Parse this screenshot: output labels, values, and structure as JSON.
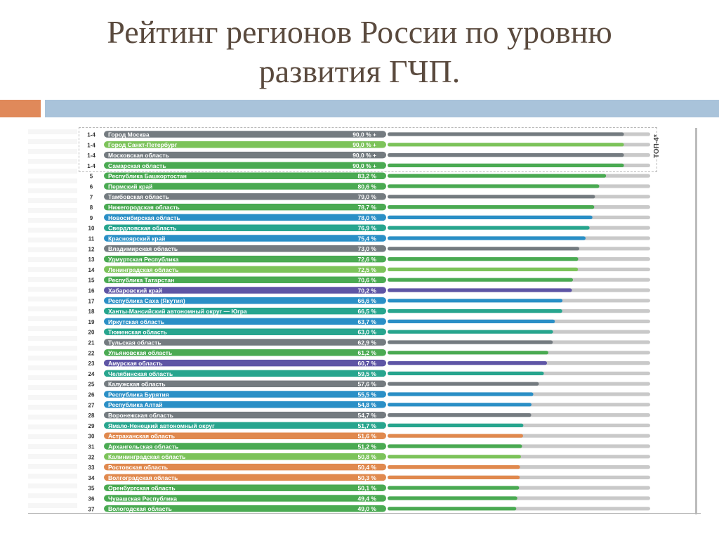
{
  "title": {
    "line1": "Рейтинг регионов России по уровню",
    "line2": "развития ГЧП."
  },
  "top_tag": "ТОП-4*",
  "colors": {
    "accent_orange": "#e0895a",
    "accent_blue": "#a9c3da",
    "title": "#5a4a3e",
    "track": "#c9c9c9"
  },
  "chart_data": {
    "type": "bar",
    "orientation": "horizontal",
    "xlim": [
      0,
      100
    ],
    "unit": "%",
    "rows": [
      {
        "rank": "1-4",
        "region": "Город Москва",
        "value": 90.0,
        "label": "90,0 % +",
        "color": "#747b80"
      },
      {
        "rank": "1-4",
        "region": "Город Санкт-Петербург",
        "value": 90.0,
        "label": "90,0 % +",
        "color": "#7cc35a"
      },
      {
        "rank": "1-4",
        "region": "Московская область",
        "value": 90.0,
        "label": "90,0 % +",
        "color": "#747b80"
      },
      {
        "rank": "1-4",
        "region": "Самарская область",
        "value": 90.0,
        "label": "90,0 % +",
        "color": "#4aaa52"
      },
      {
        "rank": "5",
        "region": "Республика Башкортостан",
        "value": 83.2,
        "label": "83,2 %",
        "color": "#4aaa52"
      },
      {
        "rank": "6",
        "region": "Пермский край",
        "value": 80.6,
        "label": "80,6 %",
        "color": "#4aaa52"
      },
      {
        "rank": "7",
        "region": "Тамбовская область",
        "value": 79.0,
        "label": "79,0 %",
        "color": "#747b80"
      },
      {
        "rank": "8",
        "region": "Нижегородская область",
        "value": 78.7,
        "label": "78,7 %",
        "color": "#4aaa52"
      },
      {
        "rank": "9",
        "region": "Новосибирская область",
        "value": 78.0,
        "label": "78,0 %",
        "color": "#2a8fc6"
      },
      {
        "rank": "10",
        "region": "Свердловская область",
        "value": 76.9,
        "label": "76,9 %",
        "color": "#27a58e"
      },
      {
        "rank": "11",
        "region": "Красноярский край",
        "value": 75.4,
        "label": "75,4 %",
        "color": "#2a8fc6"
      },
      {
        "rank": "12",
        "region": "Владимирская область",
        "value": 73.0,
        "label": "73,0 %",
        "color": "#747b80"
      },
      {
        "rank": "13",
        "region": "Удмуртская Республика",
        "value": 72.6,
        "label": "72,6 %",
        "color": "#4aaa52"
      },
      {
        "rank": "14",
        "region": "Ленинградская область",
        "value": 72.5,
        "label": "72,5 %",
        "color": "#7cc35a"
      },
      {
        "rank": "15",
        "region": "Республика Татарстан",
        "value": 70.6,
        "label": "70,6 %",
        "color": "#4aaa52"
      },
      {
        "rank": "16",
        "region": "Хабаровский край",
        "value": 70.2,
        "label": "70,2 %",
        "color": "#5e55a5"
      },
      {
        "rank": "17",
        "region": "Республика Саха (Якутия)",
        "value": 66.6,
        "label": "66,6 %",
        "color": "#2a8fc6"
      },
      {
        "rank": "18",
        "region": "Ханты-Мансийский автономный округ — Югра",
        "value": 66.5,
        "label": "66,5 %",
        "color": "#27a58e"
      },
      {
        "rank": "19",
        "region": "Иркутская область",
        "value": 63.7,
        "label": "63,7 %",
        "color": "#2a8fc6"
      },
      {
        "rank": "20",
        "region": "Тюменская область",
        "value": 63.0,
        "label": "63,0 %",
        "color": "#27a58e"
      },
      {
        "rank": "21",
        "region": "Тульская область",
        "value": 62.9,
        "label": "62,9 %",
        "color": "#747b80"
      },
      {
        "rank": "22",
        "region": "Ульяновская область",
        "value": 61.2,
        "label": "61,2 %",
        "color": "#4aaa52"
      },
      {
        "rank": "23",
        "region": "Амурская область",
        "value": 60.7,
        "label": "60,7 %",
        "color": "#5e55a5"
      },
      {
        "rank": "24",
        "region": "Челябинская область",
        "value": 59.5,
        "label": "59,5 %",
        "color": "#27a58e"
      },
      {
        "rank": "25",
        "region": "Калужская область",
        "value": 57.6,
        "label": "57,6 %",
        "color": "#747b80"
      },
      {
        "rank": "26",
        "region": "Республика Бурятия",
        "value": 55.5,
        "label": "55,5 %",
        "color": "#2a8fc6"
      },
      {
        "rank": "27",
        "region": "Республика Алтай",
        "value": 54.8,
        "label": "54,8 %",
        "color": "#2a8fc6"
      },
      {
        "rank": "28",
        "region": "Воронежская область",
        "value": 54.7,
        "label": "54,7 %",
        "color": "#747b80"
      },
      {
        "rank": "29",
        "region": "Ямало-Ненецкий автономный округ",
        "value": 51.7,
        "label": "51,7 %",
        "color": "#27a58e"
      },
      {
        "rank": "30",
        "region": "Астраханская область",
        "value": 51.6,
        "label": "51,6 %",
        "color": "#e0894e"
      },
      {
        "rank": "31",
        "region": "Архангельская область",
        "value": 51.2,
        "label": "51,2 %",
        "color": "#4aaa52"
      },
      {
        "rank": "32",
        "region": "Калининградская область",
        "value": 50.8,
        "label": "50,8 %",
        "color": "#7cc35a"
      },
      {
        "rank": "33",
        "region": "Ростовская область",
        "value": 50.4,
        "label": "50,4 %",
        "color": "#e0894e"
      },
      {
        "rank": "34",
        "region": "Волгоградская область",
        "value": 50.3,
        "label": "50,3 %",
        "color": "#e0894e"
      },
      {
        "rank": "35",
        "region": "Оренбургская область",
        "value": 50.1,
        "label": "50,1 %",
        "color": "#4aaa52"
      },
      {
        "rank": "36",
        "region": "Чувашская Республика",
        "value": 49.4,
        "label": "49,4 %",
        "color": "#4aaa52"
      },
      {
        "rank": "37",
        "region": "Вологодская область",
        "value": 49.0,
        "label": "49,0 %",
        "color": "#4aaa52"
      }
    ]
  }
}
